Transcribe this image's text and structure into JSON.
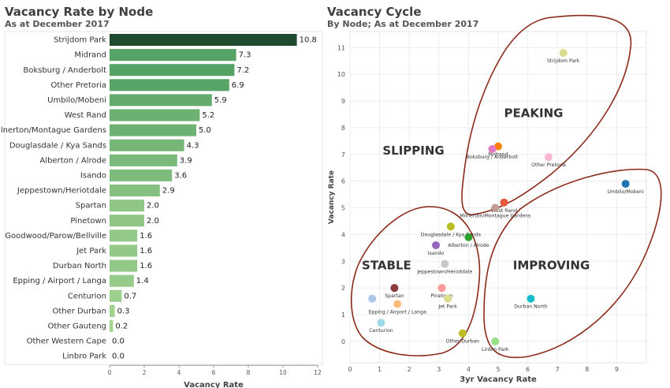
{
  "bar_chart": {
    "title": "Vacancy Rate by Node",
    "subtitle": "As at December 2017"
  },
  "scatter_chart": {
    "title": "Vacancy Cycle",
    "subtitle": "By Node; As at December 2017"
  },
  "chart_data": [
    {
      "type": "bar",
      "orientation": "horizontal",
      "title": "Vacancy Rate by Node",
      "subtitle": "As at December 2017",
      "xlabel": "Vacancy Rate",
      "ylabel": "",
      "xlim": [
        0,
        12
      ],
      "x_ticks": [
        0,
        2,
        4,
        6,
        8,
        10,
        12
      ],
      "grid": false,
      "categories": [
        "Strijdom Park",
        "Midrand",
        "Boksburg / Anderbolt",
        "Other Pretoria",
        "Umbilo/Mobeni",
        "West Rand",
        "Milnerton/Montague Gardens",
        "Douglasdale / Kya Sands",
        "Alberton / Alrode",
        "Isando",
        "Jeppestown/Heriotdale",
        "Spartan",
        "Pinetown",
        "Goodwood/Parow/Bellville",
        "Jet Park",
        "Durban North",
        "Epping / Airport / Langa",
        "Centurion",
        "Other Durban",
        "Other Gauteng",
        "Other Western Cape",
        "Linbro Park"
      ],
      "values": [
        10.8,
        7.3,
        7.2,
        6.9,
        5.9,
        5.2,
        5.0,
        4.3,
        3.9,
        3.6,
        2.9,
        2.0,
        2.0,
        1.6,
        1.6,
        1.6,
        1.4,
        0.7,
        0.3,
        0.2,
        0.0,
        0.0
      ],
      "value_labels": [
        "10.8",
        "7.3",
        "7.2",
        "6.9",
        "5.9",
        "5.2",
        "5.0",
        "4.3",
        "3.9",
        "3.6",
        "2.9",
        "2.0",
        "2.0",
        "1.6",
        "1.6",
        "1.6",
        "1.4",
        "0.7",
        "0.3",
        "0.2",
        "0.0",
        "0.0"
      ]
    },
    {
      "type": "scatter",
      "title": "Vacancy Cycle",
      "subtitle": "By Node; As at December 2017",
      "xlabel": "3yr Vacancy Rate",
      "ylabel": "Vacancy Rate",
      "xlim": [
        0,
        10
      ],
      "ylim": [
        -0.8,
        11.6
      ],
      "x_ticks": [
        0,
        1,
        2,
        3,
        4,
        5,
        6,
        7,
        8,
        9
      ],
      "y_ticks": [
        0,
        1,
        2,
        3,
        4,
        5,
        6,
        7,
        8,
        9,
        10,
        11
      ],
      "grid": true,
      "annotations": [
        {
          "text": "SLIPPING",
          "x": 1.1,
          "y": 7.0
        },
        {
          "text": "PEAKING",
          "x": 5.2,
          "y": 8.4
        },
        {
          "text": "STABLE",
          "x": 0.4,
          "y": 2.7
        },
        {
          "text": "IMPROVING",
          "x": 5.5,
          "y": 2.7
        }
      ],
      "points": [
        {
          "label": "Strijdom Park",
          "x": 7.2,
          "y": 10.8,
          "color": "#dbdb8d"
        },
        {
          "label": "Midrand",
          "x": 5.0,
          "y": 7.3,
          "color": "#ff7f0e"
        },
        {
          "label": "Boksburg / Anderbolt",
          "x": 4.8,
          "y": 7.2,
          "color": "#e377c2"
        },
        {
          "label": "Other Pretoria",
          "x": 6.7,
          "y": 6.9,
          "color": "#f7b6d2"
        },
        {
          "label": "Umbilo/Mobeni",
          "x": 9.3,
          "y": 5.9,
          "color": "#1f77b4"
        },
        {
          "label": "West Rand",
          "x": 5.2,
          "y": 5.2,
          "color": "#e8553d"
        },
        {
          "label": "Milnerton/Montague Gardens",
          "x": 4.9,
          "y": 5.0,
          "color": "#c49c94"
        },
        {
          "label": "Douglasdale / Kya Sands",
          "x": 3.4,
          "y": 4.3,
          "color": "#bcbd22"
        },
        {
          "label": "Alberton / Alrode",
          "x": 4.0,
          "y": 3.9,
          "color": "#2ca02c"
        },
        {
          "label": "Isando",
          "x": 2.9,
          "y": 3.6,
          "color": "#9467bd"
        },
        {
          "label": "Jeppestown/Heriotdale",
          "x": 3.2,
          "y": 2.9,
          "color": "#c7c7c7"
        },
        {
          "label": "Spartan",
          "x": 1.5,
          "y": 2.0,
          "color": "#8c3b3b"
        },
        {
          "label": "Pinetown",
          "x": 3.1,
          "y": 2.0,
          "color": "#ff9896"
        },
        {
          "label": "Jet Park",
          "x": 3.3,
          "y": 1.6,
          "color": "#dbdb8d"
        },
        {
          "label": "Epping / Airport / Langa",
          "x": 1.6,
          "y": 1.4,
          "color": "#ffbb78"
        },
        {
          "label": "",
          "x": 0.75,
          "y": 1.6,
          "color": "#aec7e8"
        },
        {
          "label": "Durban North",
          "x": 6.1,
          "y": 1.6,
          "color": "#17becf"
        },
        {
          "label": "Centurion",
          "x": 1.05,
          "y": 0.7,
          "color": "#9edae5"
        },
        {
          "label": "Other Durban",
          "x": 3.8,
          "y": 0.3,
          "color": "#bcbd22"
        },
        {
          "label": "Linbro Park",
          "x": 4.9,
          "y": 0.0,
          "color": "#98df8a"
        }
      ]
    }
  ]
}
